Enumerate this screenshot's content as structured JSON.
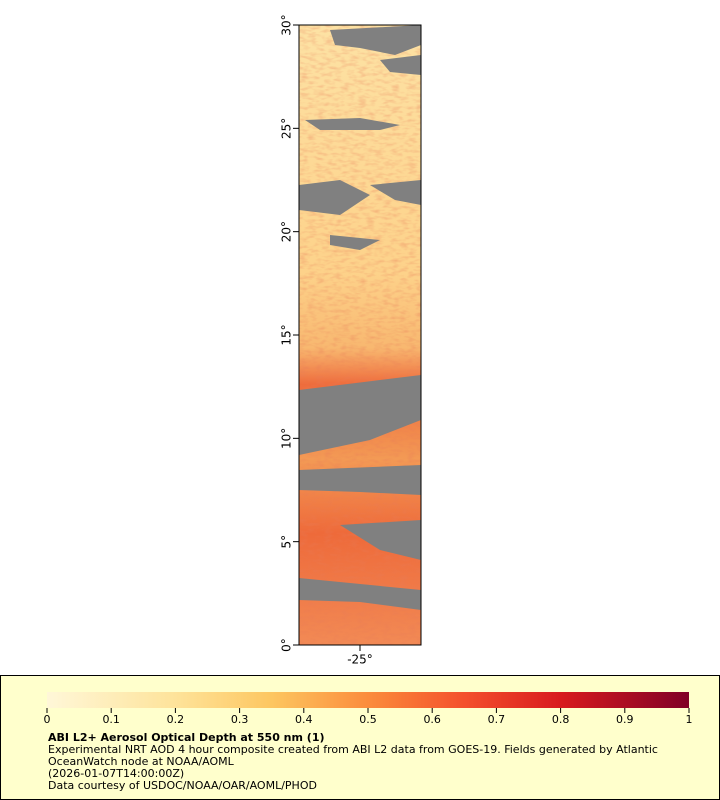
{
  "chart_data": {
    "type": "map",
    "ylim": [
      0,
      30
    ],
    "yticks": [
      {
        "value": 0,
        "label": "0°"
      },
      {
        "value": 5,
        "label": "5°"
      },
      {
        "value": 10,
        "label": "10°"
      },
      {
        "value": 15,
        "label": "15°"
      },
      {
        "value": 20,
        "label": "20°"
      },
      {
        "value": 25,
        "label": "25°"
      },
      {
        "value": 30,
        "label": "30°"
      }
    ],
    "xlim": [
      -28,
      -22
    ],
    "xticks": [
      {
        "value": -25,
        "label": "-25°"
      }
    ],
    "colorbar": {
      "lim": [
        0,
        1
      ],
      "ticks": [
        0,
        0.1,
        0.2,
        0.3,
        0.4,
        0.5,
        0.6,
        0.7,
        0.8,
        0.9,
        1
      ]
    },
    "title": "ABI L2+ Aerosol Optical Depth at 550 nm (1)",
    "notes": [
      "Experimental NRT AOD 4 hour composite created from ABI L2 data from GOES-19. Fields generated by Atlantic",
      "OceanWatch node at NOAA/AOML",
      "(2026-01-07T14:00:00Z)",
      "Data courtesy of USDOC/NOAA/OAR/AOML/PHOD"
    ]
  }
}
